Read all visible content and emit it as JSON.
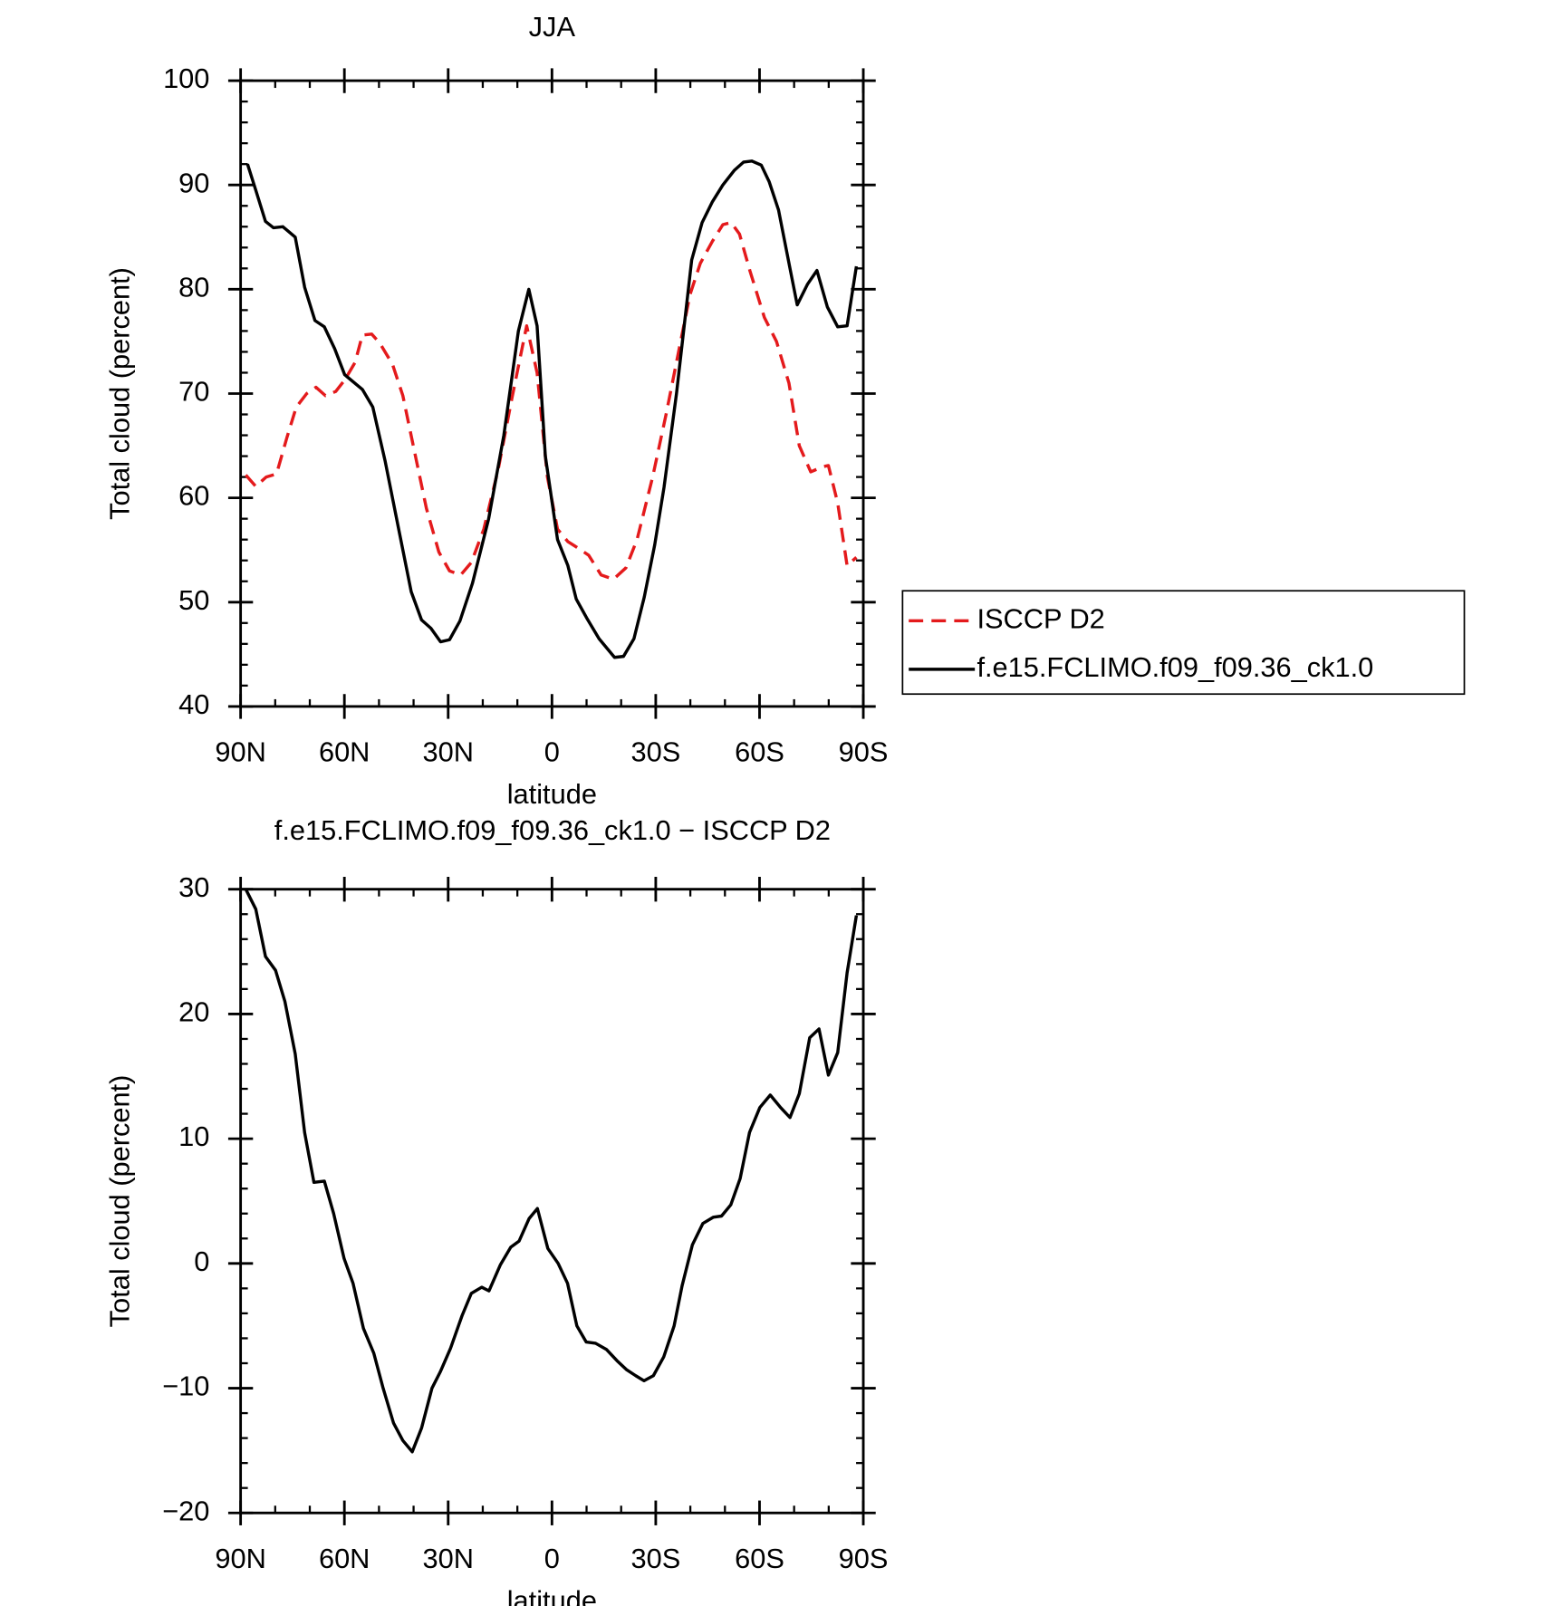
{
  "chart_data": [
    {
      "type": "line",
      "title": "JJA",
      "xlabel": "latitude",
      "ylabel": "Total cloud (percent)",
      "xlim": [
        90,
        -90
      ],
      "xticks": [
        {
          "value": 90,
          "label": "90N"
        },
        {
          "value": 60,
          "label": "60N"
        },
        {
          "value": 30,
          "label": "30N"
        },
        0,
        {
          "value": -30,
          "label": "30S"
        },
        {
          "value": -60,
          "label": "60S"
        },
        {
          "value": -90,
          "label": "90S"
        }
      ],
      "ylim": [
        40,
        100
      ],
      "yticks": [
        40,
        50,
        60,
        70,
        80,
        90,
        100
      ],
      "legend": "right",
      "series": [
        {
          "name": "ISCCP D2",
          "color": "#e41a1c",
          "line_style": "dashed",
          "x": [
            88.5,
            85.6,
            82.6,
            79.6,
            76.6,
            73.9,
            70.9,
            68.2,
            65.5,
            62.5,
            59.9,
            56.9,
            54.8,
            52.1,
            49.7,
            46.1,
            43.1,
            40.1,
            36.3,
            32.7,
            29.6,
            26.4,
            23.3,
            19.7,
            15.5,
            11.6,
            7.3,
            4.3,
            1.3,
            -1.6,
            -4.6,
            -7,
            -10.6,
            -14.2,
            -17.8,
            -21.4,
            -24.6,
            -29.1,
            -33,
            -36.6,
            -39.9,
            -42.9,
            -46.4,
            -49.4,
            -51.8,
            -54.2,
            -57.2,
            -61.4,
            -64.9,
            -68.5,
            -71.5,
            -74.8,
            -78.4,
            -79.9,
            -82.6,
            -85.3,
            -88
          ],
          "values": [
            62.2,
            61.1,
            62,
            62.3,
            65.8,
            68.7,
            70,
            70.6,
            69.8,
            70.2,
            71.3,
            73,
            75.6,
            75.7,
            74.8,
            72.8,
            69.8,
            65,
            59,
            54.8,
            53,
            52.6,
            53.8,
            57,
            62.8,
            69.5,
            76.5,
            72,
            62,
            57,
            55.8,
            55.3,
            54.5,
            52.6,
            52.2,
            53.3,
            56,
            62,
            68,
            74,
            79.5,
            82.5,
            84.6,
            86.2,
            86.4,
            85.3,
            81.8,
            77.3,
            75,
            71,
            65,
            62.5,
            63,
            63.1,
            59.5,
            53.5,
            54.3
          ]
        },
        {
          "name": "f.e15.FCLIMO.f09_f09.36_ck1.0",
          "color": "#000000",
          "line_style": "solid",
          "x": [
            88,
            85.6,
            82.8,
            80.5,
            77.8,
            74.2,
            71.5,
            68.5,
            65.8,
            62.8,
            59.9,
            54.8,
            51.8,
            48.2,
            44,
            40.7,
            37.7,
            35,
            32.2,
            29.6,
            26.6,
            23,
            18.3,
            13.9,
            9.7,
            6.7,
            4.3,
            1.9,
            -1.6,
            -4.6,
            -7,
            -10,
            -13.6,
            -18.1,
            -20.7,
            -23.7,
            -26.7,
            -29.7,
            -32.4,
            -36,
            -40.4,
            -43.4,
            -46.4,
            -49.4,
            -52.7,
            -55.4,
            -57.8,
            -60.5,
            -62.8,
            -65.5,
            -68.8,
            -70.9,
            -73.9,
            -76.6,
            -79.6,
            -82.6,
            -85.3,
            -88
          ],
          "values": [
            92,
            89.5,
            86.5,
            85.9,
            86,
            85,
            80.2,
            77,
            76.4,
            74.3,
            71.8,
            70.4,
            68.7,
            63.5,
            56.5,
            51,
            48.3,
            47.5,
            46.2,
            46.4,
            48.2,
            51.8,
            58,
            66,
            76,
            80,
            76.5,
            64,
            56,
            53.5,
            50.3,
            48.5,
            46.5,
            44.7,
            44.8,
            46.5,
            50.5,
            55.5,
            61,
            70,
            82.8,
            86.4,
            88.4,
            90,
            91.4,
            92.2,
            92.3,
            91.9,
            90.3,
            87.6,
            82,
            78.5,
            80.5,
            81.8,
            78.3,
            76.4,
            76.5,
            82.2
          ]
        }
      ]
    },
    {
      "type": "line",
      "title": "f.e15.FCLIMO.f09_f09.36_ck1.0 − ISCCP D2",
      "xlabel": "latitude",
      "ylabel": "Total cloud (percent)",
      "xlim": [
        90,
        -90
      ],
      "xticks": [
        {
          "value": 90,
          "label": "90N"
        },
        {
          "value": 60,
          "label": "60N"
        },
        {
          "value": 30,
          "label": "30N"
        },
        0,
        {
          "value": -30,
          "label": "30S"
        },
        {
          "value": -60,
          "label": "60S"
        },
        {
          "value": -90,
          "label": "90S"
        }
      ],
      "ylim": [
        -20,
        30
      ],
      "yticks": [
        {
          "value": -20,
          "label": "−20"
        },
        {
          "value": -10,
          "label": "−10"
        },
        0,
        10,
        20,
        30
      ],
      "color": "#000000",
      "x": [
        88.5,
        85.6,
        82.8,
        79.9,
        77.2,
        74.2,
        71.5,
        68.8,
        65.8,
        63.1,
        60.1,
        57.5,
        54.5,
        51.5,
        48.8,
        45.8,
        43.1,
        40.4,
        37.7,
        34.7,
        32.3,
        29.3,
        26,
        23.3,
        20.3,
        18.2,
        14.9,
        11.9,
        9.5,
        6.6,
        4.2,
        1.2,
        -1.8,
        -4.5,
        -7.2,
        -9.9,
        -12.6,
        -15.8,
        -18.8,
        -21.5,
        -24.2,
        -26.6,
        -29.3,
        -32.3,
        -35.3,
        -37.6,
        -40.6,
        -43.6,
        -46.6,
        -49,
        -51.7,
        -54.4,
        -57.1,
        -60.1,
        -63.1,
        -66.1,
        -68.8,
        -71.5,
        -74.5,
        -77.2,
        -79.9,
        -82.6,
        -85.3,
        -88
      ],
      "values": [
        30,
        28.4,
        24.6,
        23.5,
        21,
        16.8,
        10.5,
        6.5,
        6.6,
        4,
        0.4,
        -1.6,
        -5.2,
        -7.2,
        -10,
        -12.8,
        -14.2,
        -15.1,
        -13.2,
        -10,
        -8.7,
        -6.8,
        -4.2,
        -2.4,
        -1.9,
        -2.2,
        -0.1,
        1.3,
        1.8,
        3.6,
        4.4,
        1.2,
        0,
        -1.6,
        -5,
        -6.3,
        -6.4,
        -6.9,
        -7.8,
        -8.5,
        -9,
        -9.4,
        -9,
        -7.5,
        -5,
        -1.8,
        1.5,
        3.2,
        3.7,
        3.8,
        4.7,
        6.8,
        10.5,
        12.5,
        13.5,
        12.5,
        11.7,
        13.6,
        18.1,
        18.8,
        15.1,
        16.9,
        23.3,
        27.9
      ]
    }
  ]
}
